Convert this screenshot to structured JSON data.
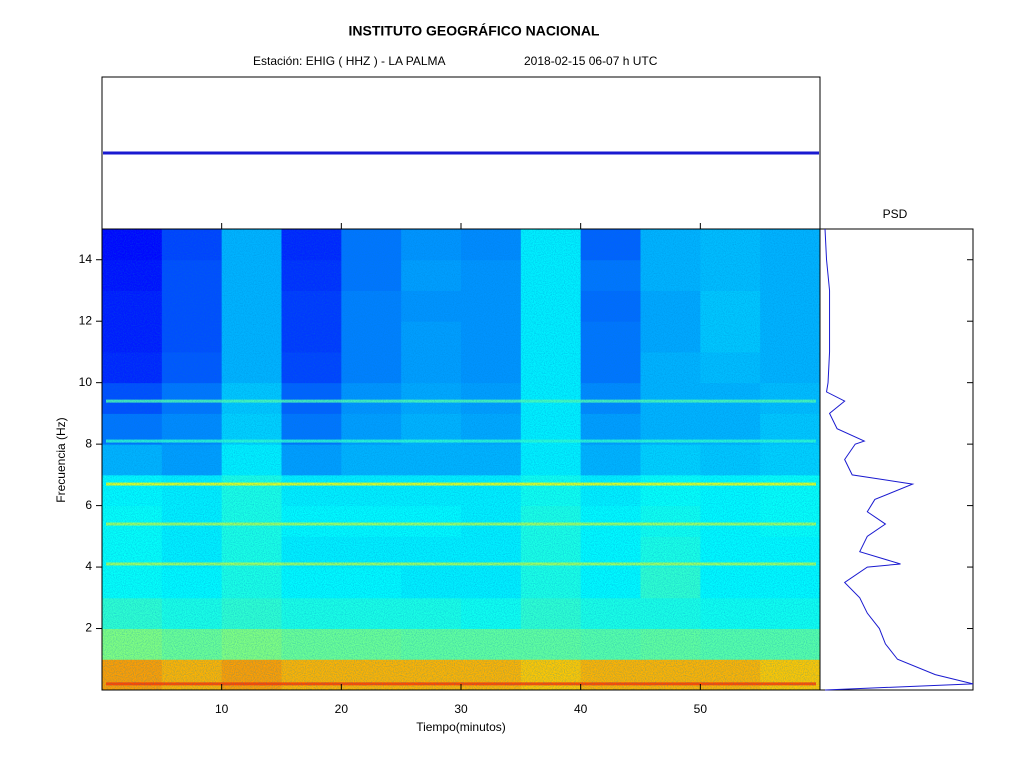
{
  "chart_data": {
    "type": "spectrogram",
    "title": "INSTITUTO GEOGRÁFICO NACIONAL",
    "station": "Estación:  EHIG ( HHZ ) - LA PALMA",
    "date": "2018-02-15  06-07 h UTC",
    "xlabel": "Tiempo(minutos)",
    "ylabel": "Frecuencia  (Hz)",
    "xlim": [
      0,
      60
    ],
    "xticks": [
      10,
      20,
      30,
      40,
      50
    ],
    "ylim": [
      0,
      15
    ],
    "yticks": [
      2,
      4,
      6,
      8,
      10,
      12,
      14
    ],
    "intensity": [
      [
        0.72,
        0.7,
        0.72,
        0.7,
        0.7,
        0.7,
        0.7,
        0.68,
        0.7,
        0.7,
        0.7,
        0.68
      ],
      [
        0.5,
        0.48,
        0.5,
        0.48,
        0.48,
        0.47,
        0.47,
        0.47,
        0.46,
        0.47,
        0.46,
        0.46
      ],
      [
        0.42,
        0.4,
        0.42,
        0.4,
        0.4,
        0.4,
        0.39,
        0.42,
        0.4,
        0.4,
        0.39,
        0.39
      ],
      [
        0.38,
        0.37,
        0.4,
        0.37,
        0.37,
        0.36,
        0.36,
        0.4,
        0.37,
        0.42,
        0.37,
        0.37
      ],
      [
        0.38,
        0.36,
        0.4,
        0.36,
        0.36,
        0.36,
        0.36,
        0.4,
        0.37,
        0.4,
        0.37,
        0.37
      ],
      [
        0.38,
        0.36,
        0.4,
        0.37,
        0.37,
        0.37,
        0.36,
        0.4,
        0.37,
        0.39,
        0.37,
        0.38
      ],
      [
        0.37,
        0.36,
        0.4,
        0.36,
        0.36,
        0.36,
        0.36,
        0.39,
        0.36,
        0.38,
        0.37,
        0.38
      ],
      [
        0.3,
        0.28,
        0.36,
        0.28,
        0.3,
        0.3,
        0.3,
        0.36,
        0.3,
        0.33,
        0.32,
        0.33
      ],
      [
        0.24,
        0.26,
        0.33,
        0.24,
        0.28,
        0.3,
        0.29,
        0.36,
        0.28,
        0.3,
        0.3,
        0.32
      ],
      [
        0.2,
        0.24,
        0.32,
        0.22,
        0.27,
        0.29,
        0.28,
        0.36,
        0.26,
        0.3,
        0.3,
        0.31
      ],
      [
        0.16,
        0.21,
        0.3,
        0.19,
        0.25,
        0.28,
        0.27,
        0.36,
        0.24,
        0.3,
        0.31,
        0.3
      ],
      [
        0.15,
        0.2,
        0.3,
        0.18,
        0.25,
        0.28,
        0.27,
        0.36,
        0.24,
        0.29,
        0.32,
        0.3
      ],
      [
        0.15,
        0.2,
        0.3,
        0.18,
        0.25,
        0.27,
        0.27,
        0.36,
        0.23,
        0.29,
        0.32,
        0.3
      ],
      [
        0.14,
        0.2,
        0.3,
        0.17,
        0.24,
        0.28,
        0.27,
        0.36,
        0.24,
        0.3,
        0.31,
        0.3
      ],
      [
        0.13,
        0.19,
        0.3,
        0.16,
        0.24,
        0.27,
        0.26,
        0.36,
        0.22,
        0.3,
        0.31,
        0.3
      ]
    ],
    "spectral_lines": [
      {
        "freq": 0.2,
        "intensity": 0.82
      },
      {
        "freq": 4.1,
        "intensity": 0.55
      },
      {
        "freq": 5.4,
        "intensity": 0.55
      },
      {
        "freq": 6.7,
        "intensity": 0.62
      },
      {
        "freq": 8.1,
        "intensity": 0.42
      },
      {
        "freq": 9.4,
        "intensity": 0.45
      }
    ],
    "psd": {
      "title": "PSD",
      "freqs": [
        0,
        0.2,
        0.5,
        1,
        1.5,
        2,
        2.5,
        3,
        3.5,
        4,
        4.1,
        4.5,
        5,
        5.4,
        5.8,
        6.2,
        6.7,
        7,
        7.5,
        8,
        8.1,
        8.5,
        9,
        9.4,
        9.7,
        10,
        11,
        12,
        13,
        14,
        15
      ],
      "values": [
        0.02,
        1.0,
        0.75,
        0.5,
        0.42,
        0.38,
        0.3,
        0.25,
        0.15,
        0.3,
        0.52,
        0.25,
        0.3,
        0.42,
        0.3,
        0.35,
        0.6,
        0.2,
        0.15,
        0.22,
        0.28,
        0.1,
        0.05,
        0.15,
        0.03,
        0.04,
        0.05,
        0.05,
        0.05,
        0.03,
        0.02
      ]
    }
  }
}
